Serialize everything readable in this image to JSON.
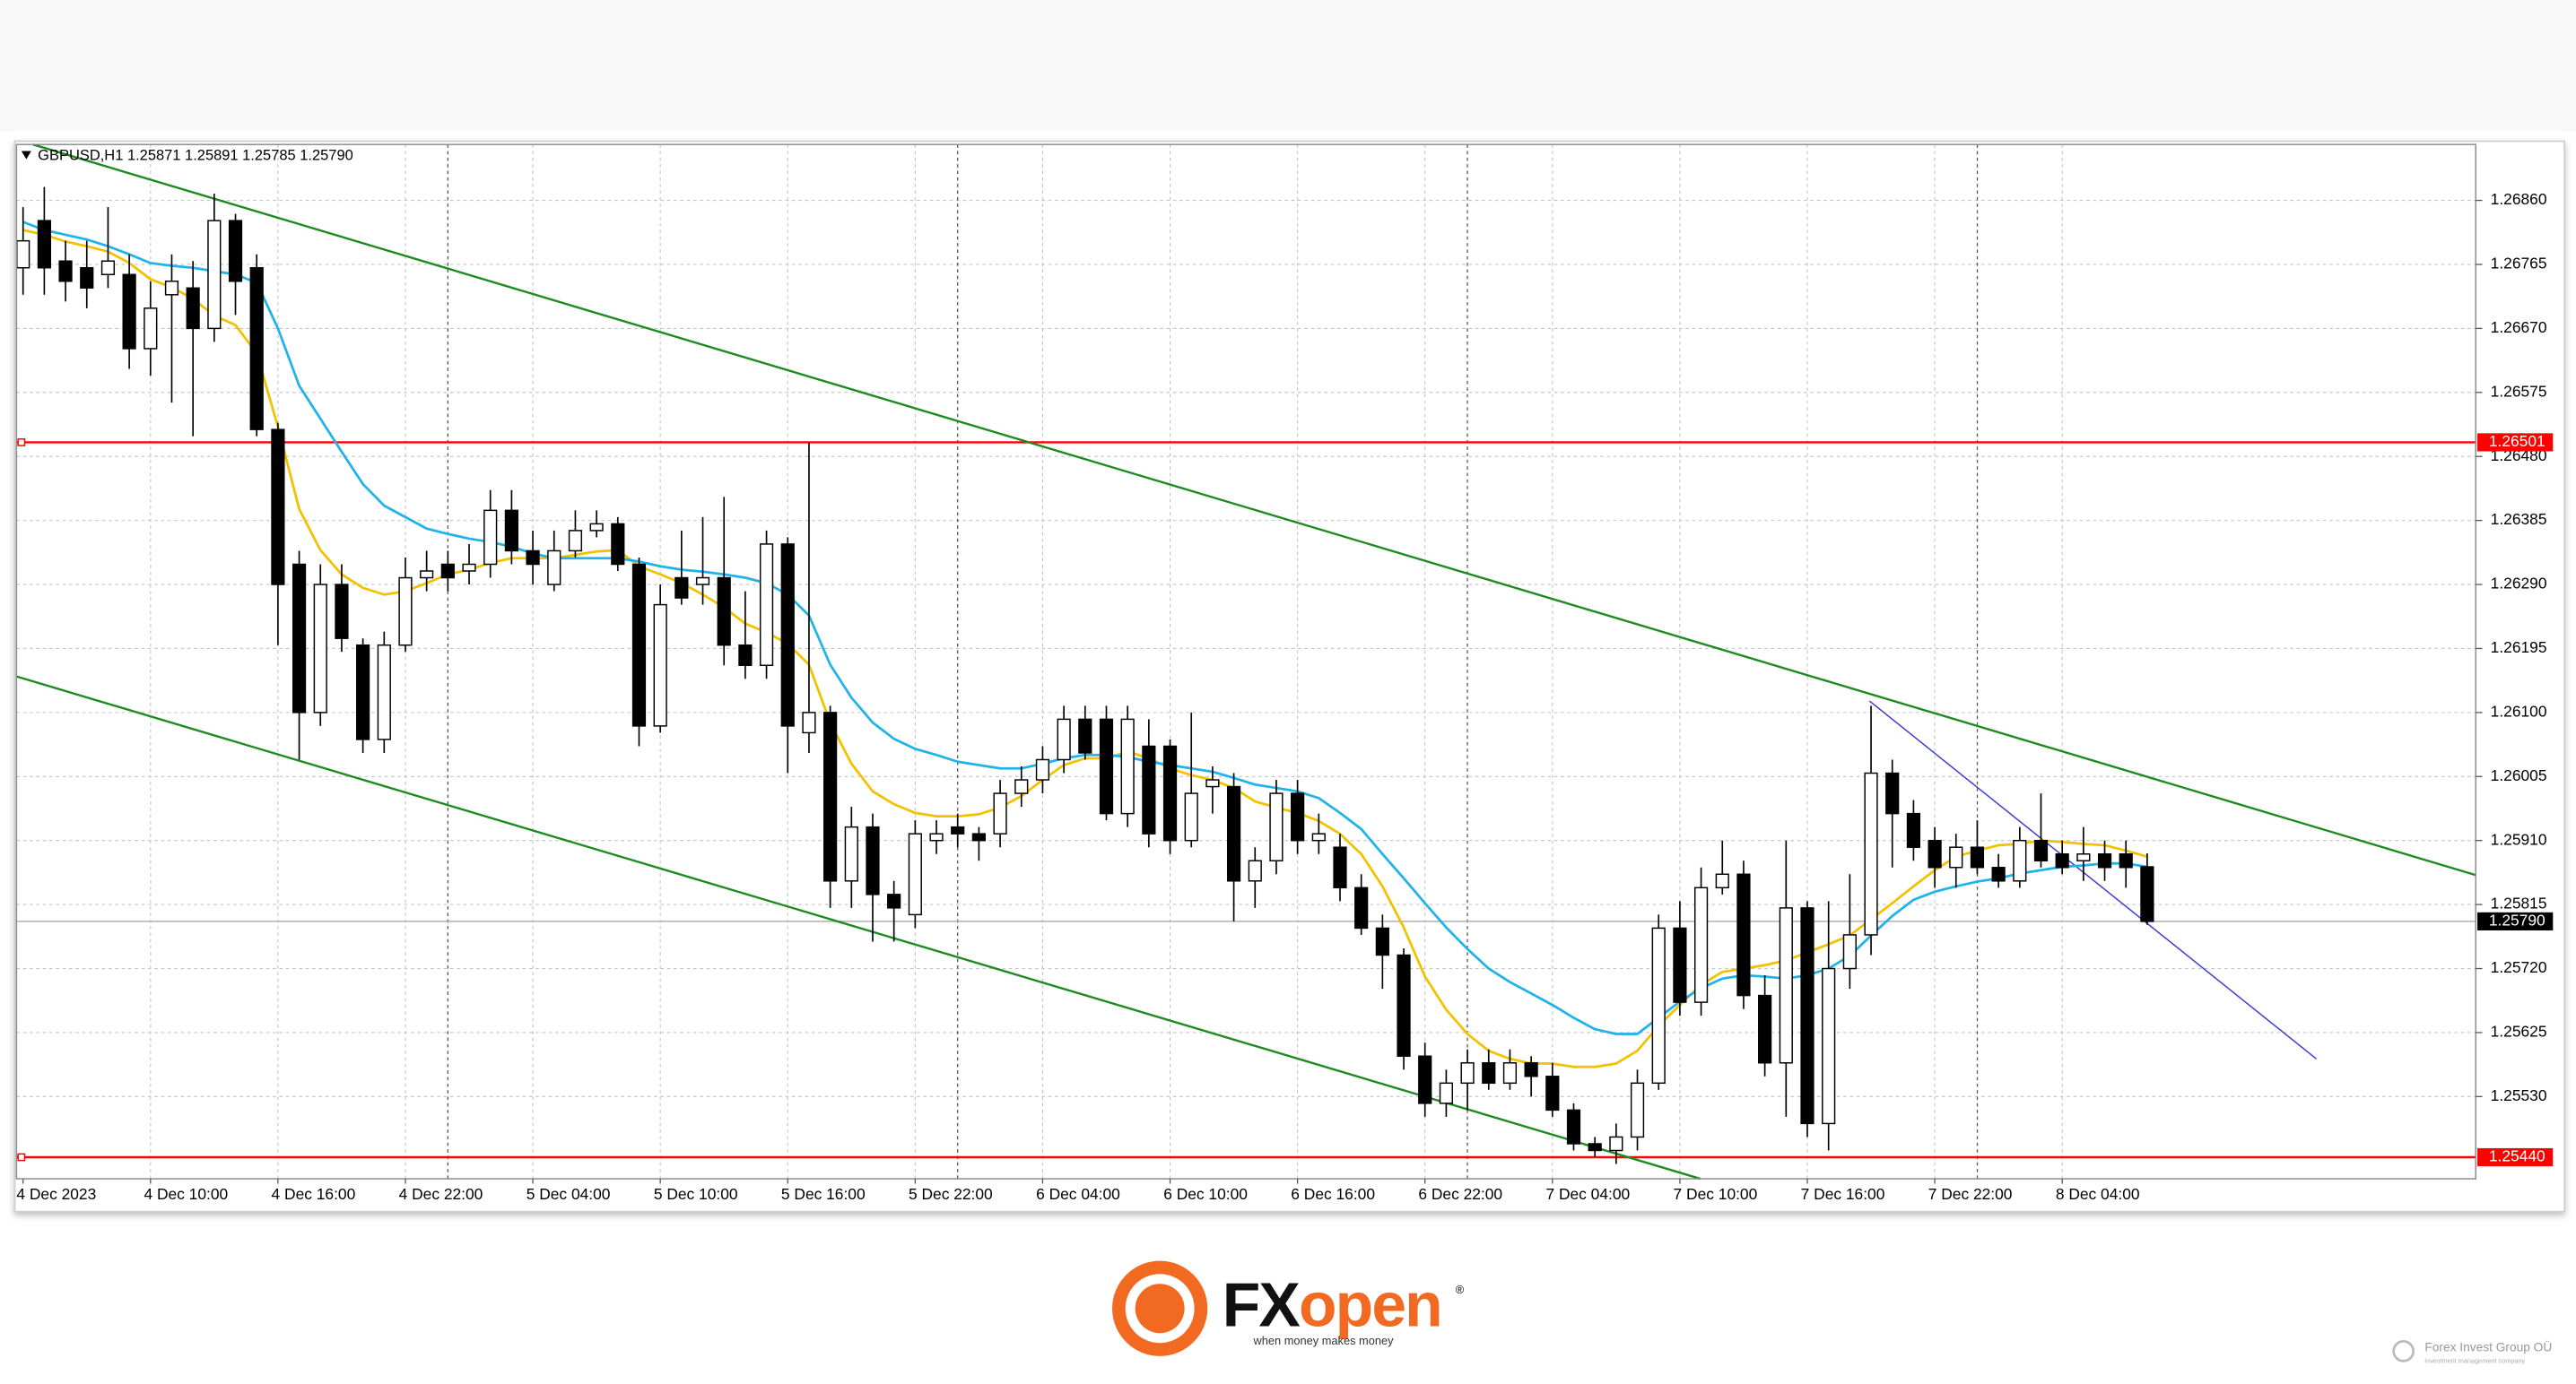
{
  "chart_data": {
    "type": "candlestick",
    "title": "GBPUSD,H1  1.25871 1.25891 1.25785 1.25790",
    "categories": [
      "4 Dec 2023",
      null,
      null,
      null,
      null,
      null,
      "4 Dec 10:00",
      null,
      null,
      null,
      null,
      null,
      "4 Dec 16:00",
      null,
      null,
      null,
      null,
      null,
      "4 Dec 22:00",
      null,
      null,
      null,
      null,
      null,
      "5 Dec 04:00",
      null,
      null,
      null,
      null,
      null,
      "5 Dec 10:00",
      null,
      null,
      null,
      null,
      null,
      "5 Dec 16:00",
      null,
      null,
      null,
      null,
      null,
      "5 Dec 22:00",
      null,
      null,
      null,
      null,
      null,
      "6 Dec 04:00",
      null,
      null,
      null,
      null,
      null,
      "6 Dec 10:00",
      null,
      null,
      null,
      null,
      null,
      "6 Dec 16:00",
      null,
      null,
      null,
      null,
      null,
      "6 Dec 22:00",
      null,
      null,
      null,
      null,
      null,
      "7 Dec 04:00",
      null,
      null,
      null,
      null,
      null,
      "7 Dec 10:00",
      null,
      null,
      null,
      null,
      null,
      "7 Dec 16:00",
      null,
      null,
      null,
      null,
      null,
      "7 Dec 22:00",
      null,
      null,
      null,
      null,
      null,
      "8 Dec 04:00",
      null,
      null,
      null,
      null
    ],
    "open": [
      1.2676,
      1.2683,
      1.2677,
      1.2676,
      1.2675,
      1.2675,
      1.2664,
      1.2672,
      1.2673,
      1.2667,
      1.2683,
      1.2676,
      1.2652,
      1.2632,
      1.261,
      1.2629,
      1.262,
      1.2606,
      1.262,
      1.263,
      1.2632,
      1.2631,
      1.2632,
      1.264,
      1.2634,
      1.2629,
      1.2634,
      1.2637,
      1.2638,
      1.2632,
      1.2608,
      1.263,
      1.2629,
      1.263,
      1.262,
      1.2617,
      1.2635,
      1.2607,
      1.261,
      1.2585,
      1.2593,
      1.2583,
      1.258,
      1.2591,
      1.2593,
      1.2592,
      1.2592,
      1.2598,
      1.26,
      1.2603,
      1.2609,
      1.2609,
      1.2595,
      1.2605,
      1.2605,
      1.2591,
      1.2599,
      1.2599,
      1.2585,
      1.2588,
      1.2598,
      1.2591,
      1.259,
      1.2584,
      1.2578,
      1.2574,
      1.2559,
      1.2552,
      1.2555,
      1.2558,
      1.2555,
      1.2558,
      1.2556,
      1.2551,
      1.2546,
      1.2545,
      1.2547,
      1.2555,
      1.2578,
      1.2567,
      1.2584,
      1.2586,
      1.2568,
      1.2558,
      1.2581,
      1.2549,
      1.2572,
      1.2577,
      1.2601,
      1.2595,
      1.2591,
      1.2587,
      1.259,
      1.2587,
      1.2585,
      1.2591,
      1.2589,
      1.2588,
      1.2589,
      1.2589,
      1.25871
    ],
    "high": [
      1.2685,
      1.2688,
      1.268,
      1.268,
      1.2685,
      1.2678,
      1.2674,
      1.2678,
      1.2677,
      1.2687,
      1.2684,
      1.2678,
      1.2653,
      1.2634,
      1.2632,
      1.2632,
      1.2621,
      1.2622,
      1.2633,
      1.2634,
      1.2634,
      1.2635,
      1.2643,
      1.2643,
      1.2637,
      1.2637,
      1.264,
      1.264,
      1.2639,
      1.2633,
      1.2629,
      1.2637,
      1.2639,
      1.2642,
      1.2628,
      1.2637,
      1.2636,
      1.265,
      1.2611,
      1.2596,
      1.2595,
      1.2585,
      1.2594,
      1.2594,
      1.2595,
      1.2593,
      1.26,
      1.2602,
      1.2605,
      1.2611,
      1.2611,
      1.2611,
      1.2611,
      1.2609,
      1.2606,
      1.261,
      1.2602,
      1.2601,
      1.259,
      1.26,
      1.26,
      1.2595,
      1.2592,
      1.2586,
      1.258,
      1.2575,
      1.2561,
      1.2557,
      1.256,
      1.256,
      1.256,
      1.2559,
      1.2558,
      1.2552,
      1.2547,
      1.2549,
      1.2557,
      1.258,
      1.2582,
      1.2587,
      1.2591,
      1.2588,
      1.2571,
      1.2591,
      1.2582,
      1.2582,
      1.2586,
      1.2611,
      1.2603,
      1.2597,
      1.2593,
      1.2592,
      1.2594,
      1.2589,
      1.2593,
      1.2598,
      1.2591,
      1.2593,
      1.2591,
      1.2591,
      1.25891
    ],
    "low": [
      1.2672,
      1.2672,
      1.2671,
      1.267,
      1.2673,
      1.2661,
      1.266,
      1.2656,
      1.2651,
      1.2665,
      1.2669,
      1.2651,
      1.262,
      1.2603,
      1.2608,
      1.2619,
      1.2604,
      1.2604,
      1.2619,
      1.2628,
      1.2628,
      1.2629,
      1.263,
      1.2632,
      1.2629,
      1.2628,
      1.2633,
      1.2636,
      1.2631,
      1.2605,
      1.2607,
      1.2626,
      1.2626,
      1.2617,
      1.2615,
      1.2615,
      1.2601,
      1.2604,
      1.2581,
      1.2581,
      1.2576,
      1.2576,
      1.2578,
      1.2589,
      1.259,
      1.2588,
      1.259,
      1.2596,
      1.2598,
      1.2601,
      1.2603,
      1.2594,
      1.2593,
      1.259,
      1.2589,
      1.259,
      1.2595,
      1.2579,
      1.2581,
      1.2586,
      1.2589,
      1.2589,
      1.2582,
      1.2577,
      1.2569,
      1.2557,
      1.255,
      1.255,
      1.2551,
      1.2554,
      1.2554,
      1.2553,
      1.255,
      1.2545,
      1.2544,
      1.2543,
      1.2545,
      1.2554,
      1.2565,
      1.2565,
      1.2583,
      1.2566,
      1.2556,
      1.255,
      1.2547,
      1.2545,
      1.2569,
      1.2574,
      1.2587,
      1.2588,
      1.2584,
      1.2584,
      1.2586,
      1.2584,
      1.2584,
      1.2587,
      1.2586,
      1.2585,
      1.2585,
      1.2584,
      1.25785
    ],
    "close": [
      1.268,
      1.2676,
      1.2674,
      1.2673,
      1.2677,
      1.2664,
      1.267,
      1.2674,
      1.2667,
      1.2683,
      1.2674,
      1.2652,
      1.2629,
      1.261,
      1.2629,
      1.2621,
      1.2606,
      1.262,
      1.263,
      1.2631,
      1.263,
      1.2632,
      1.264,
      1.2634,
      1.2632,
      1.2634,
      1.2637,
      1.2638,
      1.2632,
      1.2608,
      1.2626,
      1.2627,
      1.263,
      1.262,
      1.2617,
      1.2635,
      1.2608,
      1.261,
      1.2585,
      1.2593,
      1.2583,
      1.2581,
      1.2592,
      1.2592,
      1.2592,
      1.2591,
      1.2598,
      1.26,
      1.2603,
      1.2609,
      1.2604,
      1.2595,
      1.2609,
      1.2592,
      1.2591,
      1.2598,
      1.26,
      1.2585,
      1.2588,
      1.2598,
      1.2591,
      1.2592,
      1.2584,
      1.2578,
      1.2574,
      1.2559,
      1.2552,
      1.2555,
      1.2558,
      1.2555,
      1.2558,
      1.2556,
      1.2551,
      1.2546,
      1.2545,
      1.2547,
      1.2555,
      1.2578,
      1.2567,
      1.2584,
      1.2586,
      1.2568,
      1.2558,
      1.2581,
      1.2549,
      1.2572,
      1.2577,
      1.2601,
      1.2595,
      1.259,
      1.2587,
      1.259,
      1.2587,
      1.2585,
      1.2591,
      1.2588,
      1.2587,
      1.2589,
      1.2587,
      1.2587,
      1.2579
    ],
    "up_color": "#ffffff",
    "down_color": "#000000",
    "overlays": [
      {
        "color": "#f2c200",
        "values": [
          1.26816,
          1.26809,
          1.26799,
          1.26792,
          1.26784,
          1.26767,
          1.26743,
          1.26731,
          1.26714,
          1.26689,
          1.26675,
          1.26633,
          1.26524,
          1.26402,
          1.26341,
          1.26305,
          1.26285,
          1.26275,
          1.2628,
          1.26292,
          1.26305,
          1.26312,
          1.26322,
          1.26329,
          1.26329,
          1.26329,
          1.26334,
          1.26339,
          1.26341,
          1.26317,
          1.26305,
          1.26292,
          1.26275,
          1.26256,
          1.26232,
          1.26219,
          1.26202,
          1.26171,
          1.26085,
          1.26024,
          1.25983,
          1.25964,
          1.25951,
          1.25946,
          1.25946,
          1.25949,
          1.25959,
          1.25976,
          1.26,
          1.26022,
          1.26032,
          1.26032,
          1.26042,
          1.26032,
          1.26017,
          1.26007,
          1.26,
          1.25988,
          1.25968,
          1.25959,
          1.25951,
          1.25939,
          1.2592,
          1.2589,
          1.25842,
          1.25781,
          1.25708,
          1.25659,
          1.25623,
          1.25598,
          1.25586,
          1.25579,
          1.25579,
          1.25574,
          1.25574,
          1.25579,
          1.25598,
          1.25635,
          1.25666,
          1.25696,
          1.25715,
          1.2572,
          1.25725,
          1.25732,
          1.25744,
          1.25756,
          1.25769,
          1.25793,
          1.25817,
          1.25842,
          1.25866,
          1.25886,
          1.25895,
          1.25903,
          1.25905,
          1.2591,
          1.25908,
          1.25905,
          1.25903,
          1.25895,
          1.25886
        ]
      },
      {
        "color": "#1fb3ea",
        "values": [
          1.26828,
          1.26816,
          1.26809,
          1.26802,
          1.26792,
          1.2678,
          1.26767,
          1.26763,
          1.2676,
          1.26755,
          1.2675,
          1.26738,
          1.2667,
          1.26585,
          1.26536,
          1.26487,
          1.26439,
          1.26407,
          1.2639,
          1.26373,
          1.26365,
          1.26358,
          1.26353,
          1.26346,
          1.26336,
          1.26329,
          1.26329,
          1.26329,
          1.26329,
          1.26324,
          1.26317,
          1.26312,
          1.26309,
          1.26305,
          1.263,
          1.26292,
          1.26275,
          1.26244,
          1.26171,
          1.26122,
          1.26085,
          1.26061,
          1.26046,
          1.26037,
          1.26027,
          1.26022,
          1.26017,
          1.26017,
          1.26024,
          1.26032,
          1.26037,
          1.26037,
          1.26034,
          1.26027,
          1.26022,
          1.26017,
          1.26012,
          1.26003,
          1.25993,
          1.25988,
          1.25983,
          1.25973,
          1.25951,
          1.25927,
          1.2589,
          1.25854,
          1.25817,
          1.25781,
          1.25749,
          1.2572,
          1.257,
          1.25683,
          1.25666,
          1.25647,
          1.2563,
          1.25623,
          1.25623,
          1.25647,
          1.25671,
          1.25691,
          1.25705,
          1.2571,
          1.25708,
          1.25705,
          1.2571,
          1.2572,
          1.25739,
          1.25769,
          1.25798,
          1.25822,
          1.25834,
          1.25842,
          1.25849,
          1.25854,
          1.25861,
          1.25866,
          1.25871,
          1.25873,
          1.25876,
          1.25876,
          1.25871
        ]
      }
    ],
    "levels": [
      {
        "value": 1.26501,
        "label": "1.26501",
        "color": "#ff0000"
      },
      {
        "value": 1.2544,
        "label": "1.25440",
        "color": "#ff0000"
      },
      {
        "value": 1.2579,
        "label": "1.25790",
        "color": "#000000"
      }
    ],
    "ylim": [
      1.25408,
      1.26943
    ],
    "yticks": [
      {
        "value": 1.2686,
        "label": "1.26860"
      },
      {
        "value": 1.26765,
        "label": "1.26765"
      },
      {
        "value": 1.2667,
        "label": "1.26670"
      },
      {
        "value": 1.26575,
        "label": "1.26575"
      },
      {
        "value": 1.2648,
        "label": "1.26480"
      },
      {
        "value": 1.26385,
        "label": "1.26385"
      },
      {
        "value": 1.2629,
        "label": "1.26290"
      },
      {
        "value": 1.26195,
        "label": "1.26195"
      },
      {
        "value": 1.261,
        "label": "1.26100"
      },
      {
        "value": 1.26005,
        "label": "1.26005"
      },
      {
        "value": 1.2591,
        "label": "1.25910"
      },
      {
        "value": 1.25815,
        "label": "1.25815"
      },
      {
        "value": 1.2572,
        "label": "1.25720"
      },
      {
        "value": 1.25625,
        "label": "1.25625"
      },
      {
        "value": 1.2553,
        "label": "1.25530"
      }
    ],
    "grid": true
  },
  "branding": {
    "logo_fx": "FX",
    "logo_open": "open",
    "registered": "®",
    "tagline": "when money makes money",
    "footer": "Forex Invest Group OÜ",
    "footer_sub": "investment management company"
  }
}
